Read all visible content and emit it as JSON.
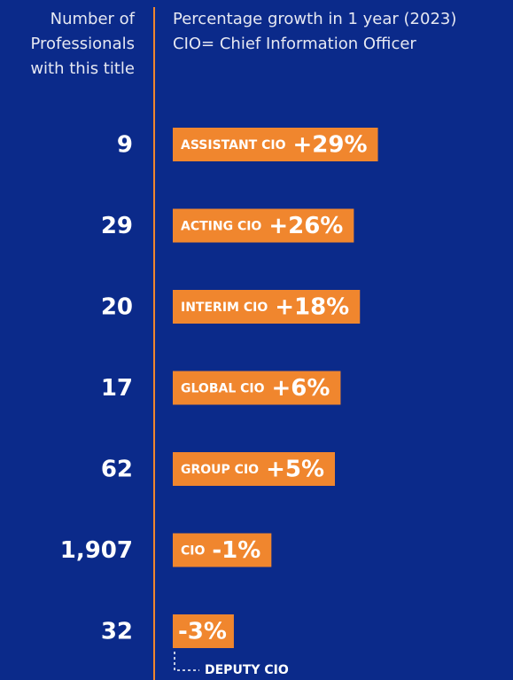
{
  "chart_data": {
    "type": "bar",
    "left_header": [
      "Number of",
      "Professionals",
      "with this title"
    ],
    "title": "Percentage growth in 1 year (2023)",
    "subtitle": "CIO= Chief Information Officer",
    "categories": [
      "ASSISTANT CIO",
      "ACTING CIO",
      "INTERIM CIO",
      "GLOBAL CIO",
      "GROUP CIO",
      "CIO",
      "DEPUTY CIO"
    ],
    "values": [
      29,
      26,
      18,
      6,
      5,
      -1,
      -3
    ],
    "value_labels": [
      "+29%",
      "+26%",
      "+18%",
      "+6%",
      "+5%",
      "-1%",
      "-3%"
    ],
    "counts": [
      9,
      29,
      20,
      17,
      62,
      {
        "value": 1907,
        "label": "1,907"
      },
      32
    ],
    "color": "#f0862e",
    "background": "#0b2a8a"
  }
}
